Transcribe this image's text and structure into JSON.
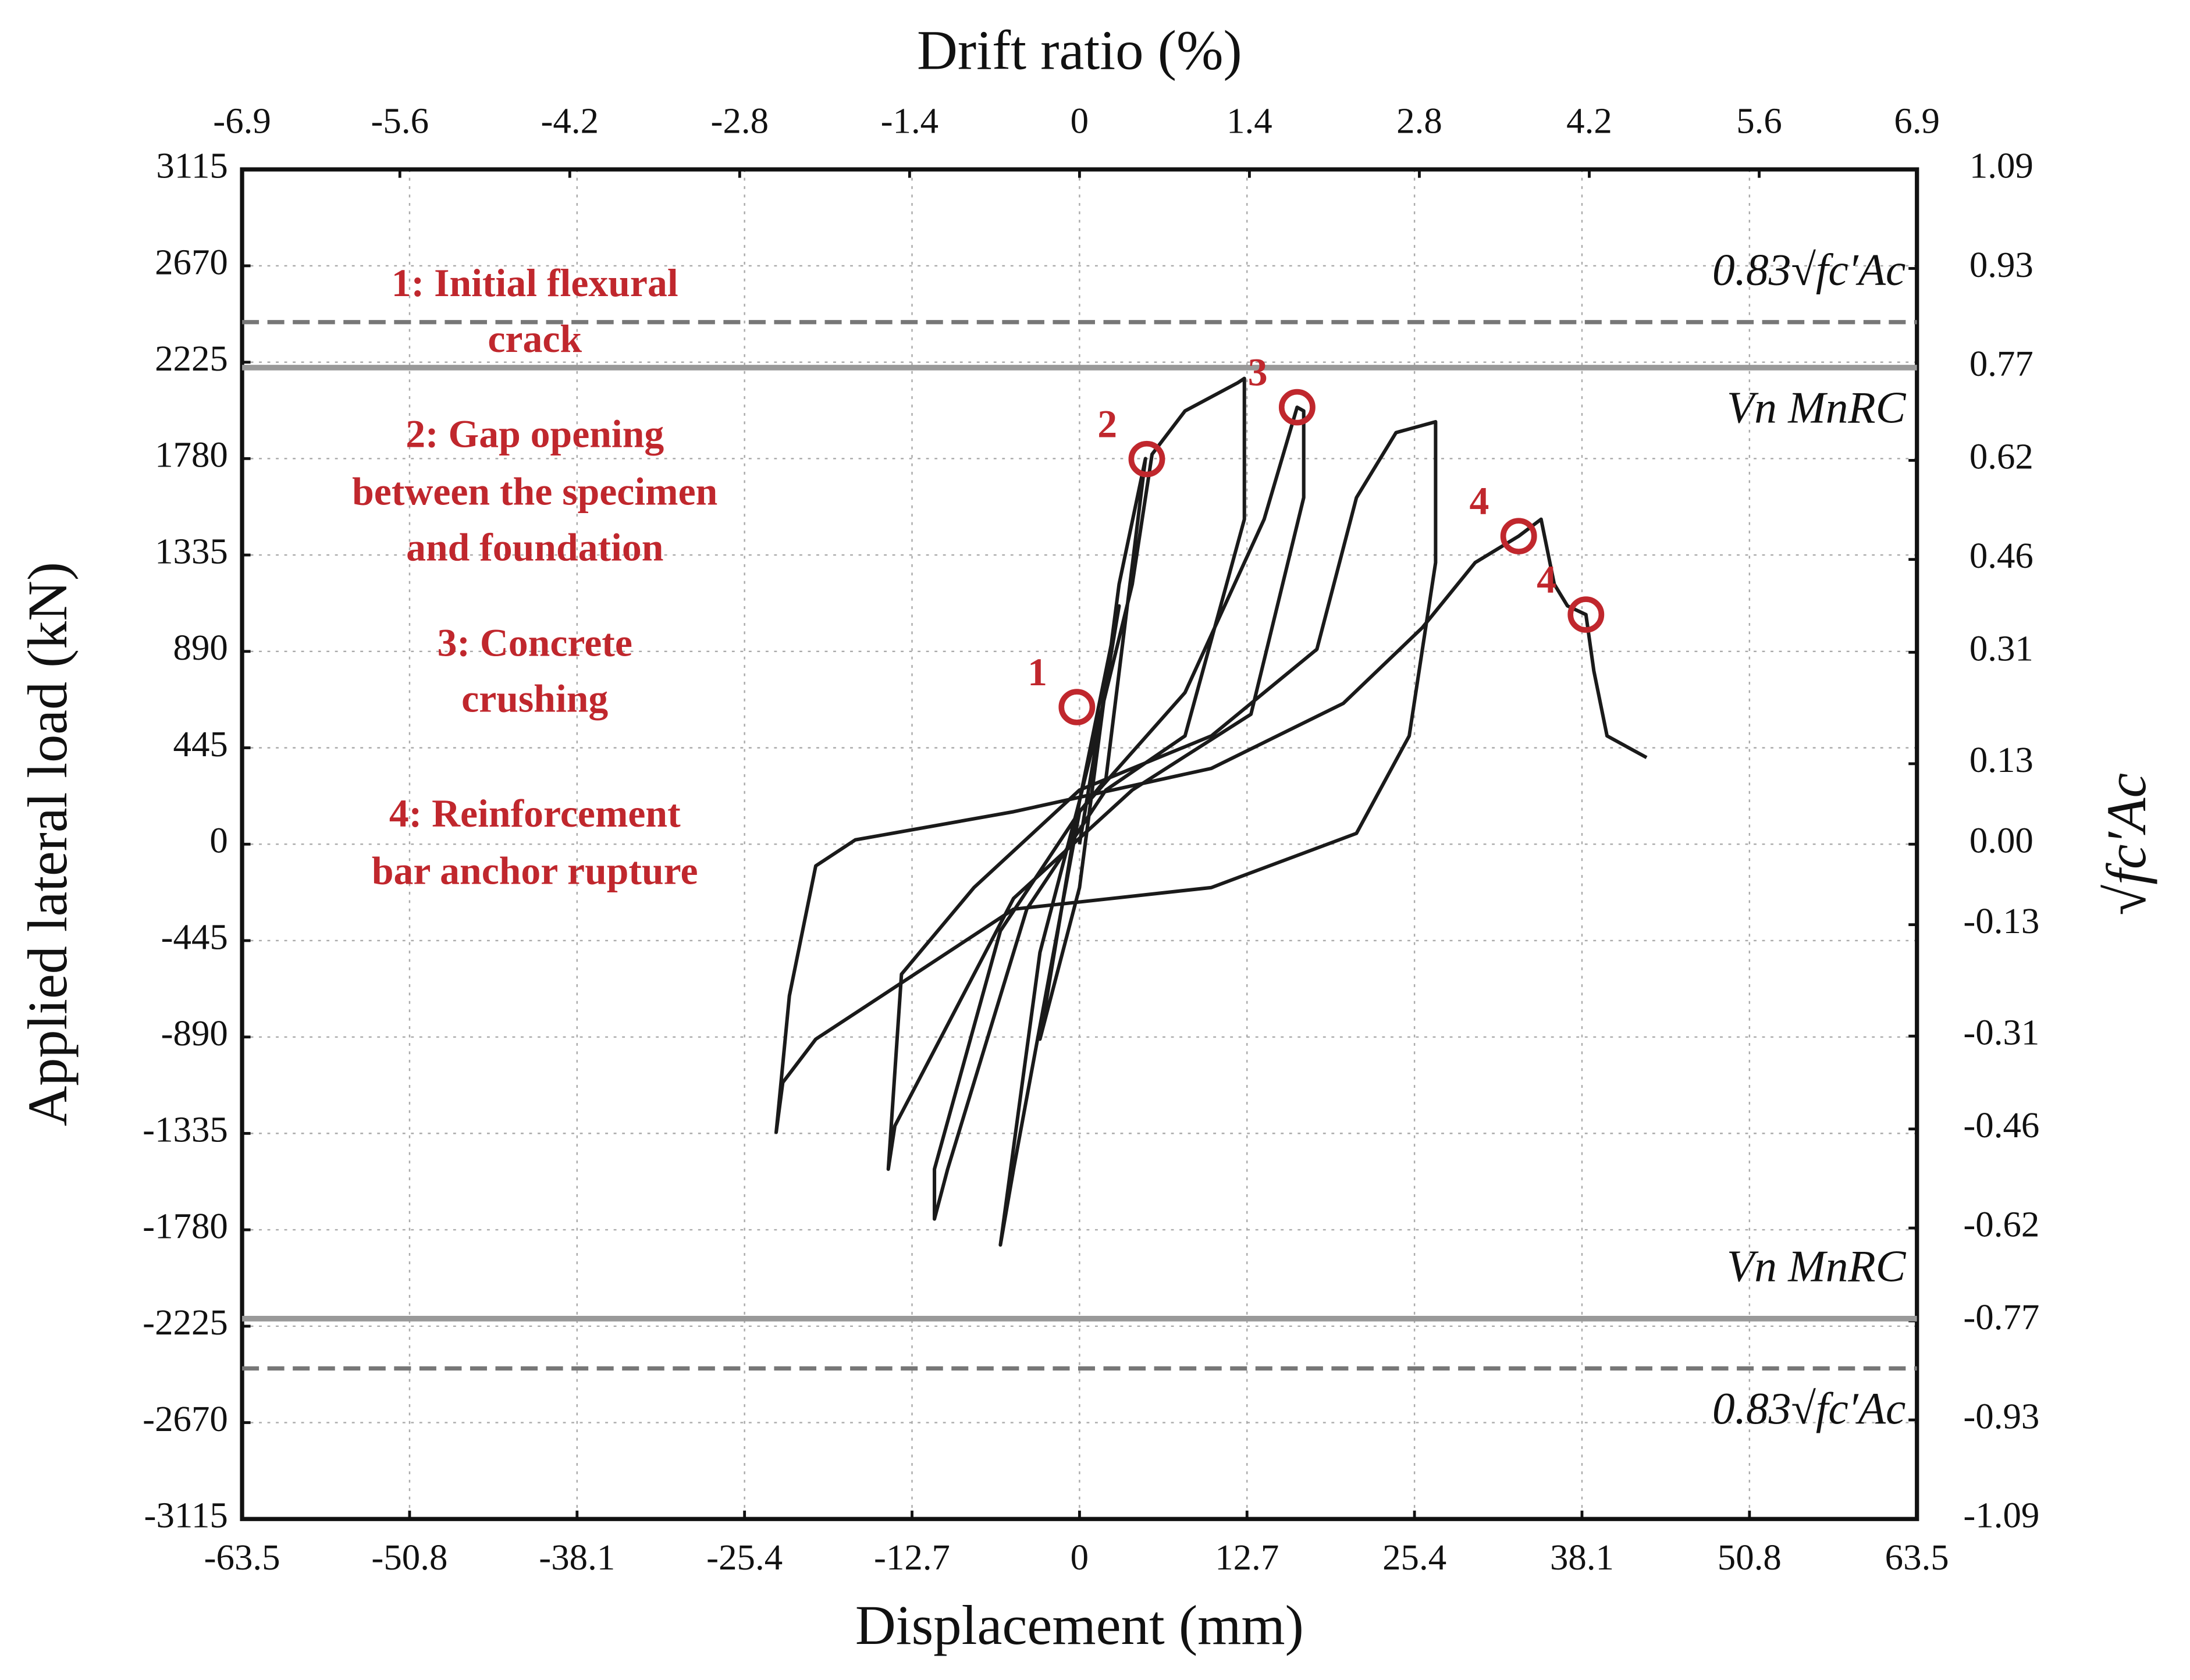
{
  "chart_data": {
    "type": "line",
    "x_label": "Displacement (mm)",
    "x2_label": "Drift ratio (%)",
    "y_label": "Applied lateral load (kN)",
    "y2_label": "√fc′Ac",
    "xlim": [
      -63.5,
      63.5
    ],
    "xticks": [
      -63.5,
      -50.8,
      -38.1,
      -25.4,
      -12.7,
      0,
      12.7,
      25.4,
      38.1,
      50.8,
      63.5
    ],
    "x2lim": [
      -6.9,
      6.9
    ],
    "x2ticks": [
      -6.9,
      -5.6,
      -4.2,
      -2.8,
      -1.4,
      0,
      1.4,
      2.8,
      4.2,
      5.6,
      6.9
    ],
    "ylim": [
      -3115,
      3115
    ],
    "yticks": [
      -3115,
      -2670,
      -2225,
      -1780,
      -1335,
      -890,
      -445,
      0,
      445,
      890,
      1335,
      1780,
      2225,
      2670,
      3115
    ],
    "y2lim": [
      -1.09,
      1.09
    ],
    "y2ticks": [
      {
        "value": -1.09,
        "label": "-1.09"
      },
      {
        "value": -0.93,
        "label": "-0.93"
      },
      {
        "value": -0.77,
        "label": "-0.77"
      },
      {
        "value": -0.62,
        "label": "-0.62"
      },
      {
        "value": -0.46,
        "label": "-0.46"
      },
      {
        "value": -0.31,
        "label": "-0.31"
      },
      {
        "value": -0.13,
        "label": "-0.13"
      },
      {
        "value": 0,
        "label": "0.00"
      },
      {
        "value": 0.13,
        "label": "0.13"
      },
      {
        "value": 0.31,
        "label": "0.31"
      },
      {
        "value": 0.46,
        "label": "0.46"
      },
      {
        "value": 0.62,
        "label": "0.62"
      },
      {
        "value": 0.77,
        "label": "0.77"
      },
      {
        "value": 0.93,
        "label": "0.93"
      },
      {
        "value": 1.09,
        "label": "1.09"
      }
    ],
    "grid": true,
    "x": [
      0,
      3,
      0,
      -3,
      0,
      3,
      5,
      2,
      0,
      -5,
      -6,
      -3,
      0,
      4,
      5.5,
      8,
      12,
      12.5,
      12.5,
      8,
      2,
      -4,
      -10,
      -11,
      -11,
      -6,
      0,
      8,
      14,
      16.5,
      17,
      17,
      13,
      4,
      -5,
      -14,
      -14.5,
      -13.5,
      -8,
      0,
      10,
      18,
      21,
      24,
      27,
      27,
      25,
      21,
      10,
      -5,
      -20,
      -22.5,
      -23,
      -22,
      -20,
      -17,
      -5,
      10,
      20,
      26,
      30,
      33.3,
      35,
      36,
      37,
      38.4,
      39,
      40,
      43
    ],
    "series": [
      {
        "color": "#1a1a1a",
        "values": [
          0,
          1100,
          200,
          -900,
          -200,
          1200,
          1780,
          300,
          150,
          -1500,
          -1850,
          -500,
          200,
          1200,
          1800,
          2000,
          2130,
          2150,
          1500,
          500,
          250,
          -300,
          -1500,
          -1730,
          -1500,
          -400,
          150,
          700,
          1500,
          2017,
          2000,
          1600,
          600,
          250,
          -250,
          -1300,
          -1500,
          -600,
          -200,
          250,
          500,
          900,
          1600,
          1900,
          1950,
          1300,
          500,
          50,
          -200,
          -300,
          -900,
          -1100,
          -1330,
          -700,
          -100,
          20,
          150,
          350,
          650,
          1000,
          1300,
          1422,
          1500,
          1200,
          1100,
          1060,
          800,
          500,
          400
        ]
      }
    ],
    "reference_lines": [
      {
        "value": 2410,
        "label": "0.83√fc′Ac",
        "style": "dashed"
      },
      {
        "value": 2200,
        "label": "Vn MnRC",
        "style": "solid"
      },
      {
        "value": -2190,
        "label": "Vn MnRC",
        "style": "solid"
      },
      {
        "value": -2420,
        "label": "0.83√fc′Ac",
        "style": "dashed"
      }
    ],
    "annotations": [
      {
        "label": "1",
        "x": -0.2,
        "y": 633
      },
      {
        "label": "2",
        "x": 5.1,
        "y": 1778
      },
      {
        "label": "3",
        "x": 16.5,
        "y": 2017
      },
      {
        "label": "4",
        "x": 33.3,
        "y": 1422
      },
      {
        "label": "4",
        "x": 38.4,
        "y": 1060
      }
    ],
    "notes": [
      [
        "1: Initial flexural",
        "crack"
      ],
      [
        "2: Gap opening",
        "between the specimen",
        "and foundation"
      ],
      [
        "3: Concrete",
        "crushing"
      ],
      [
        "4: Reinforcement",
        "bar anchor rupture"
      ]
    ]
  }
}
